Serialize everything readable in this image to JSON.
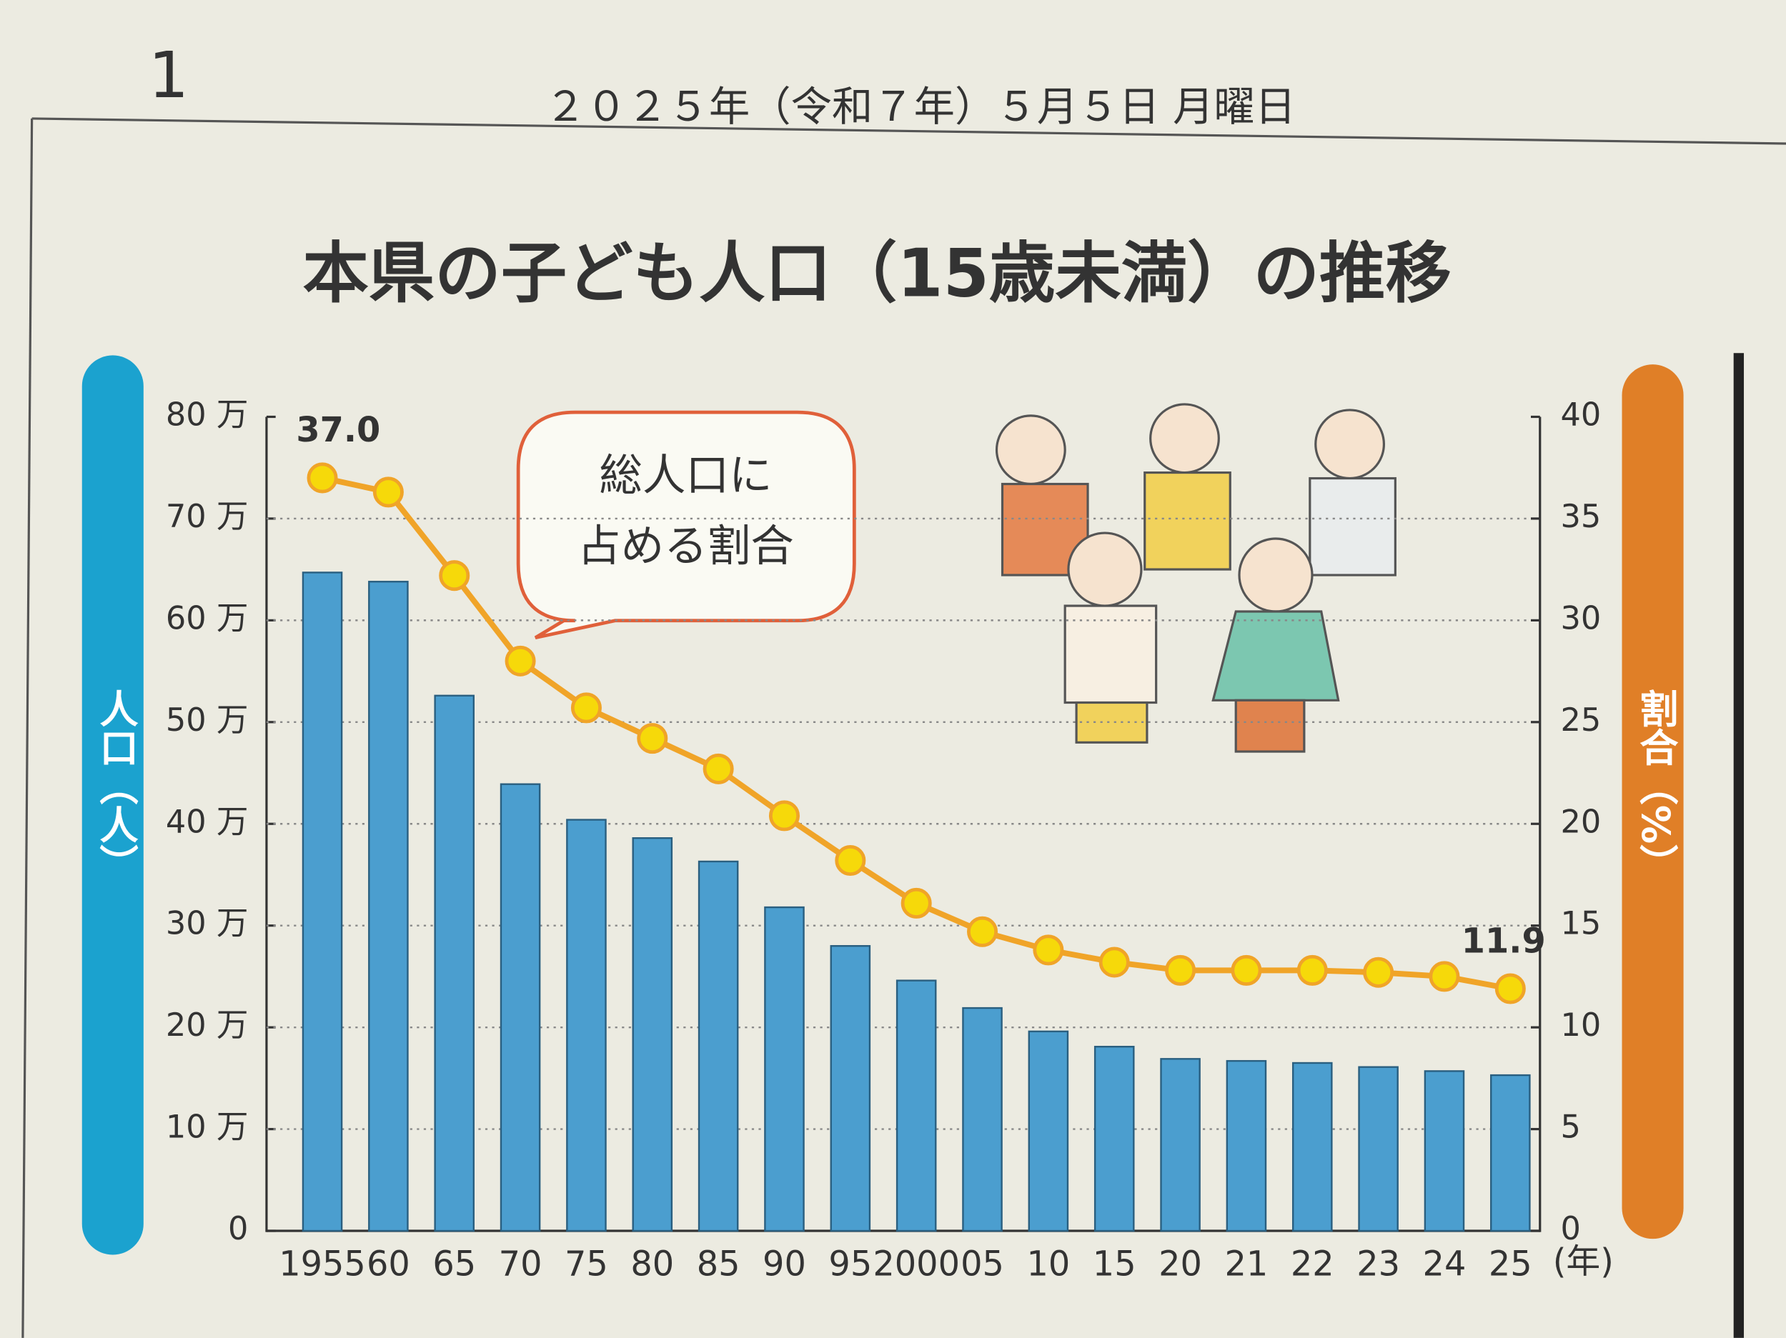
{
  "header": {
    "page": "1",
    "date": "２０２５年（令和７年）５月５日 月曜日"
  },
  "chart_data": {
    "type": "bar",
    "title": "本県の子ども人口（15歳未満）の推移",
    "y_label": "人口（人）",
    "y2_label": "割合（%）",
    "x_unit": "(年)",
    "callout": [
      "総人口に",
      "占める割合"
    ],
    "categories": [
      "1955",
      "60",
      "65",
      "70",
      "75",
      "80",
      "85",
      "90",
      "95",
      "2000",
      "05",
      "10",
      "15",
      "20",
      "21",
      "22",
      "23",
      "24",
      "25"
    ],
    "series": [
      {
        "type": "bar",
        "color": "#4b9ecf",
        "values": [
          647000,
          638000,
          526000,
          439000,
          404000,
          386000,
          363000,
          318000,
          280000,
          246000,
          219000,
          196000,
          181000,
          169000,
          167000,
          165000,
          161000,
          157000,
          153000
        ]
      },
      {
        "type": "line",
        "axis": "y2",
        "color": "#f0a428",
        "marker_color": "#f6d90a",
        "values": [
          37.0,
          36.3,
          32.2,
          28.0,
          25.7,
          24.2,
          22.7,
          20.4,
          18.2,
          16.1,
          14.7,
          13.8,
          13.2,
          12.8,
          12.8,
          12.8,
          12.7,
          12.5,
          11.9
        ],
        "value_labels": [
          "37.0",
          null,
          null,
          null,
          null,
          null,
          null,
          null,
          null,
          null,
          null,
          null,
          null,
          null,
          null,
          null,
          null,
          null,
          "11.9"
        ]
      }
    ],
    "ylim": [
      0,
      800000
    ],
    "yticks": [
      0,
      {
        "value": 100000,
        "label": "10 万"
      },
      {
        "value": 200000,
        "label": "20 万"
      },
      {
        "value": 300000,
        "label": "30 万"
      },
      {
        "value": 400000,
        "label": "40 万"
      },
      {
        "value": 500000,
        "label": "50 万"
      },
      {
        "value": 600000,
        "label": "60 万"
      },
      {
        "value": 700000,
        "label": "70 万"
      },
      {
        "value": 800000,
        "label": "80 万"
      }
    ],
    "y2lim": [
      0,
      40
    ],
    "y2ticks": [
      0,
      5,
      10,
      15,
      20,
      25,
      30,
      35,
      40
    ],
    "grid": true
  }
}
